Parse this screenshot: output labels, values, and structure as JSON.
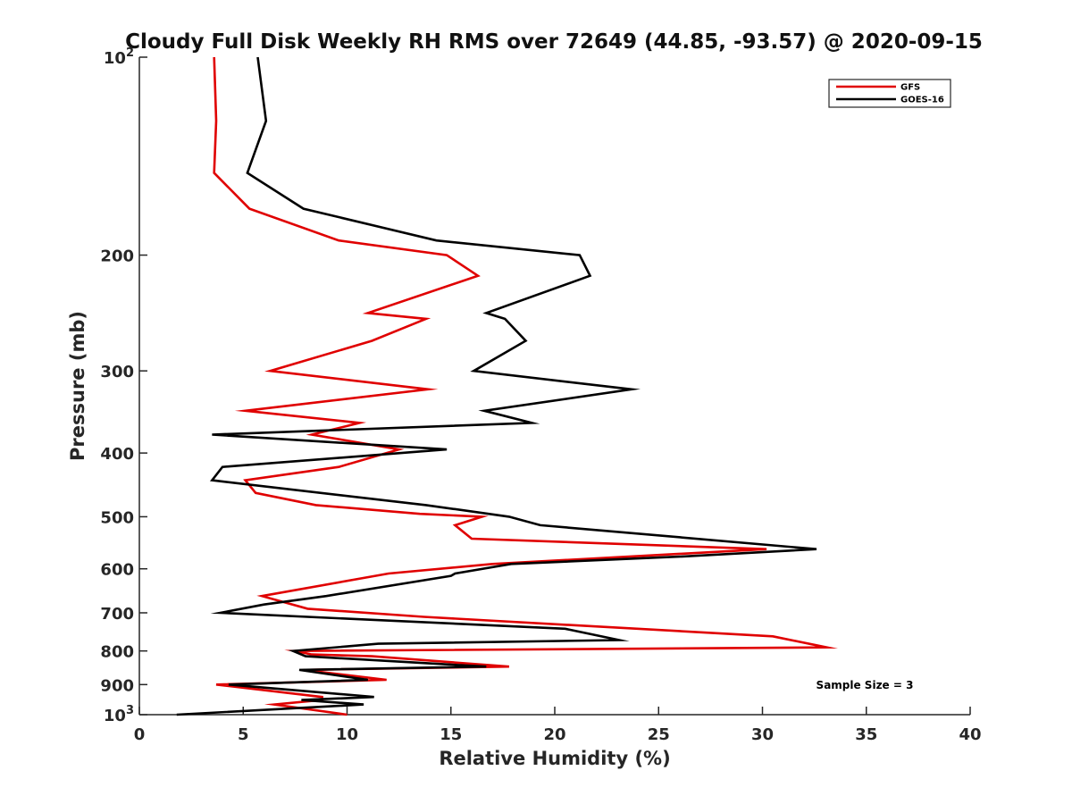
{
  "chart_data": {
    "type": "line",
    "title": "Cloudy Full Disk Weekly RH RMS over 72649 (44.85, -93.57) @ 2020-09-15",
    "xlabel": "Relative Humidity (%)",
    "ylabel": "Pressure (mb)",
    "xlim": [
      0,
      40
    ],
    "ylim": [
      100,
      1000
    ],
    "y_scale": "log",
    "y_reversed": true,
    "x_ticks": [
      "0",
      "5",
      "10",
      "15",
      "20",
      "25",
      "30",
      "35",
      "40"
    ],
    "y_ticks": [
      {
        "value": 100,
        "base": "10",
        "exp": "2"
      },
      {
        "value": 200,
        "label": "200"
      },
      {
        "value": 300,
        "label": "300"
      },
      {
        "value": 400,
        "label": "400"
      },
      {
        "value": 500,
        "label": "500"
      },
      {
        "value": 600,
        "label": "600"
      },
      {
        "value": 700,
        "label": "700"
      },
      {
        "value": 800,
        "label": "800"
      },
      {
        "value": 900,
        "label": "900"
      },
      {
        "value": 1000,
        "base": "10",
        "exp": "3"
      }
    ],
    "legend_position": "top-right",
    "annotation": "Sample Size = 3",
    "series": [
      {
        "name": "GFS",
        "color": "#e00000",
        "points": [
          [
            3.6,
            100
          ],
          [
            3.7,
            125
          ],
          [
            3.6,
            150
          ],
          [
            5.3,
            170
          ],
          [
            9.6,
            190
          ],
          [
            14.8,
            200
          ],
          [
            16.3,
            215
          ],
          [
            11.0,
            245
          ],
          [
            13.8,
            250
          ],
          [
            11.2,
            270
          ],
          [
            6.3,
            300
          ],
          [
            13.9,
            320
          ],
          [
            5.1,
            345
          ],
          [
            10.6,
            360
          ],
          [
            8.3,
            375
          ],
          [
            12.5,
            395
          ],
          [
            9.6,
            420
          ],
          [
            5.1,
            440
          ],
          [
            5.6,
            460
          ],
          [
            8.5,
            480
          ],
          [
            13.5,
            495
          ],
          [
            16.5,
            500
          ],
          [
            15.2,
            515
          ],
          [
            16.0,
            540
          ],
          [
            30.2,
            560
          ],
          [
            17.0,
            590
          ],
          [
            12.0,
            610
          ],
          [
            5.9,
            660
          ],
          [
            8.1,
            690
          ],
          [
            13.7,
            710
          ],
          [
            30.5,
            760
          ],
          [
            33.1,
            790
          ],
          [
            7.5,
            800
          ],
          [
            8.3,
            810
          ],
          [
            11.2,
            815
          ],
          [
            17.8,
            845
          ],
          [
            7.9,
            855
          ],
          [
            11.9,
            885
          ],
          [
            3.7,
            900
          ],
          [
            8.8,
            940
          ],
          [
            8.8,
            950
          ],
          [
            6.5,
            965
          ],
          [
            10.0,
            1000
          ]
        ]
      },
      {
        "name": "GOES-16",
        "color": "#000000",
        "points": [
          [
            5.7,
            100
          ],
          [
            6.1,
            125
          ],
          [
            5.2,
            150
          ],
          [
            7.9,
            170
          ],
          [
            14.3,
            190
          ],
          [
            21.2,
            200
          ],
          [
            21.7,
            215
          ],
          [
            16.7,
            245
          ],
          [
            17.6,
            250
          ],
          [
            18.6,
            270
          ],
          [
            16.1,
            300
          ],
          [
            23.7,
            320
          ],
          [
            16.6,
            345
          ],
          [
            18.9,
            360
          ],
          [
            3.5,
            375
          ],
          [
            14.8,
            395
          ],
          [
            4.0,
            420
          ],
          [
            3.5,
            440
          ],
          [
            13.8,
            480
          ],
          [
            17.8,
            500
          ],
          [
            19.3,
            515
          ],
          [
            32.6,
            560
          ],
          [
            26.0,
            575
          ],
          [
            17.9,
            590
          ],
          [
            15.2,
            610
          ],
          [
            15.0,
            615
          ],
          [
            9.0,
            660
          ],
          [
            6.0,
            680
          ],
          [
            3.9,
            700
          ],
          [
            20.5,
            740
          ],
          [
            23.1,
            770
          ],
          [
            11.5,
            780
          ],
          [
            7.4,
            800
          ],
          [
            8.0,
            815
          ],
          [
            16.7,
            845
          ],
          [
            7.7,
            855
          ],
          [
            11.0,
            885
          ],
          [
            4.3,
            900
          ],
          [
            11.3,
            940
          ],
          [
            7.8,
            950
          ],
          [
            10.8,
            965
          ],
          [
            1.8,
            1000
          ]
        ]
      }
    ]
  }
}
